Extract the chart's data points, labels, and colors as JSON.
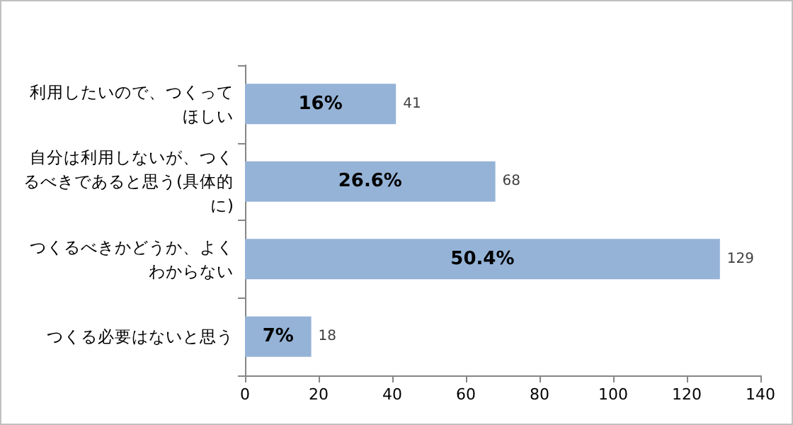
{
  "chart_data": {
    "type": "bar",
    "orientation": "horizontal",
    "categories": [
      "利用したいので、つくってほしい",
      "自分は利用しないが、つくるべきであると思う(具体的に)",
      "つくるべきかどうか、よくわからない",
      "つくる必要はないと思う"
    ],
    "values": [
      41,
      68,
      129,
      18
    ],
    "data_labels": true,
    "annotations": [
      "16%",
      "26.6%",
      "50.4%",
      "7%"
    ],
    "color": "#95b3d7",
    "xlim": [
      0,
      140
    ],
    "xticks": [
      0,
      20,
      40,
      60,
      80,
      100,
      120,
      140
    ],
    "grid": false
  }
}
